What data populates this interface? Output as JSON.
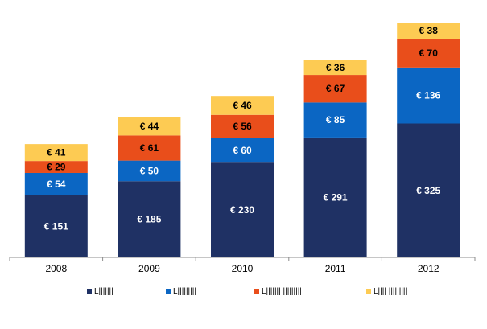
{
  "chart_data": {
    "type": "bar",
    "stacked": true,
    "categories": [
      "2008",
      "2009",
      "2010",
      "2011",
      "2012"
    ],
    "series": [
      {
        "name": "L|||||||",
        "color": "#1f3164",
        "values": [
          151,
          185,
          230,
          291,
          325
        ],
        "labels": [
          "€ 151",
          "€ 185",
          "€ 230",
          "€ 291",
          "€ 325"
        ]
      },
      {
        "name": "L|||||||||",
        "color": "#0b66c3",
        "values": [
          54,
          50,
          60,
          85,
          136
        ],
        "labels": [
          "€ 54",
          "€ 50",
          "€ 60",
          "€ 85",
          "€ 136"
        ]
      },
      {
        "name": "L||||||| |||||||||",
        "color": "#e94e1b",
        "values": [
          29,
          61,
          56,
          67,
          70
        ],
        "labels": [
          "€ 29",
          "€ 61",
          "€ 56",
          "€ 67",
          "€ 70"
        ]
      },
      {
        "name": "L|||| |||||||||",
        "color": "#fdcb53",
        "values": [
          41,
          44,
          46,
          36,
          38
        ],
        "labels": [
          "€ 41",
          "€ 44",
          "€ 46",
          "€ 36",
          "€ 38"
        ]
      }
    ],
    "label_colors": [
      "#ffffff",
      "#ffffff",
      "#000000",
      "#000000"
    ],
    "ylim": [
      0,
      575
    ],
    "grid": false,
    "legend_position": "bottom",
    "title": "",
    "xlabel": "",
    "ylabel": ""
  }
}
